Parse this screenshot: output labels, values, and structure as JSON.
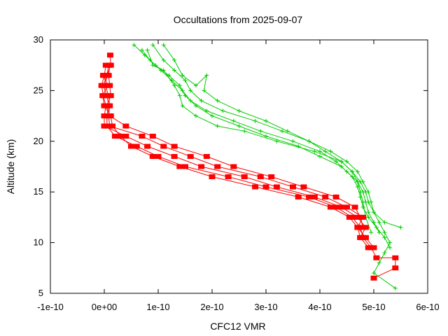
{
  "chart_data": {
    "type": "line",
    "title": "Occultations from 2025-09-07",
    "xlabel": "CFC12 VMR",
    "ylabel": "Altitude (km)",
    "xlim": [
      -1e-10,
      6e-10
    ],
    "ylim": [
      5,
      30
    ],
    "x_ticks": [
      -1e-10,
      0,
      1e-10,
      2e-10,
      3e-10,
      4e-10,
      5e-10,
      6e-10
    ],
    "x_tick_labels": [
      "-1e-10",
      "0e+00",
      "1e-10",
      "2e-10",
      "3e-10",
      "4e-10",
      "5e-10",
      "6e-10"
    ],
    "y_ticks": [
      5,
      10,
      15,
      20,
      25,
      30
    ],
    "y_tick_labels": [
      "5",
      "10",
      "15",
      "20",
      "25",
      "30"
    ],
    "grid": false,
    "legend": "none",
    "series": [
      {
        "color": "#ff0000",
        "marker": "square",
        "points": [
          [
            1.1e-11,
            28.5
          ],
          [
            1.2e-11,
            27.5
          ],
          [
            5e-12,
            26.5
          ],
          [
            -2e-12,
            25.5
          ],
          [
            5e-12,
            24.5
          ],
          [
            8e-12,
            23.5
          ],
          [
            5e-12,
            22.5
          ],
          [
            5e-12,
            21.5
          ],
          [
            2e-11,
            20.5
          ],
          [
            6e-11,
            19.5
          ],
          [
            1e-10,
            18.5
          ],
          [
            1.5e-10,
            17.5
          ],
          [
            2.3e-10,
            16.5
          ],
          [
            3e-10,
            15.5
          ],
          [
            3.8e-10,
            14.5
          ],
          [
            4.3e-10,
            13.5
          ],
          [
            4.6e-10,
            12.5
          ],
          [
            4.75e-10,
            11.5
          ],
          [
            4.8e-10,
            10.5
          ],
          [
            4.95e-10,
            9.5
          ],
          [
            5.05e-10,
            8.5
          ],
          [
            5.4e-10,
            8.5
          ],
          [
            5.4e-10,
            7.5
          ],
          [
            5e-10,
            6.5
          ]
        ]
      },
      {
        "color": "#ff0000",
        "marker": "square",
        "points": [
          [
            3e-12,
            27.5
          ],
          [
            0.0,
            26.5
          ],
          [
            -5e-12,
            25.5
          ],
          [
            -2e-12,
            24.5
          ],
          [
            3e-12,
            23.5
          ],
          [
            0.0,
            22.5
          ],
          [
            0.0,
            21.5
          ],
          [
            4e-11,
            20.5
          ],
          [
            8e-11,
            19.5
          ],
          [
            1.3e-10,
            18.5
          ],
          [
            1.8e-10,
            17.5
          ],
          [
            2.6e-10,
            16.5
          ],
          [
            3.2e-10,
            15.5
          ],
          [
            3.9e-10,
            14.5
          ],
          [
            4.4e-10,
            13.5
          ],
          [
            4.7e-10,
            12.5
          ],
          [
            4.85e-10,
            11.5
          ],
          [
            4.75e-10,
            10.5
          ],
          [
            4.9e-10,
            9.5
          ]
        ]
      },
      {
        "color": "#ff0000",
        "marker": "square",
        "points": [
          [
            8e-12,
            27.5
          ],
          [
            5e-12,
            26.5
          ],
          [
            2e-12,
            25.5
          ],
          [
            8e-12,
            24.5
          ],
          [
            1e-11,
            23.5
          ],
          [
            8e-12,
            22.5
          ],
          [
            1e-11,
            21.5
          ],
          [
            7e-11,
            20.5
          ],
          [
            1.1e-10,
            19.5
          ],
          [
            1.6e-10,
            18.5
          ],
          [
            2.1e-10,
            17.5
          ],
          [
            2.9e-10,
            16.5
          ],
          [
            3.5e-10,
            15.5
          ],
          [
            4.1e-10,
            14.5
          ],
          [
            4.5e-10,
            13.5
          ],
          [
            4.8e-10,
            12.5
          ],
          [
            4.7e-10,
            11.5
          ],
          [
            4.85e-10,
            10.5
          ],
          [
            5e-10,
            9.5
          ]
        ]
      },
      {
        "color": "#ff0000",
        "marker": "square",
        "points": [
          [
            -2e-12,
            26.5
          ],
          [
            6e-12,
            25.5
          ],
          [
            -3e-12,
            24.5
          ],
          [
            0.0,
            23.5
          ],
          [
            1.2e-11,
            22.5
          ],
          [
            1.5e-11,
            21.5
          ],
          [
            3e-11,
            20.5
          ],
          [
            5e-11,
            19.5
          ],
          [
            9e-11,
            18.5
          ],
          [
            1.4e-10,
            17.5
          ],
          [
            2e-10,
            16.5
          ],
          [
            2.8e-10,
            15.5
          ],
          [
            3.6e-10,
            14.5
          ],
          [
            4.2e-10,
            13.5
          ],
          [
            4.55e-10,
            12.5
          ],
          [
            4.7e-10,
            11.5
          ],
          [
            4.75e-10,
            10.5
          ]
        ]
      },
      {
        "color": "#ff0000",
        "marker": "square",
        "points": [
          [
            1e-11,
            27.5
          ],
          [
            8e-12,
            26.5
          ],
          [
            1e-11,
            25.5
          ],
          [
            1.2e-11,
            24.5
          ],
          [
            5e-12,
            23.5
          ],
          [
            1e-11,
            22.5
          ],
          [
            4e-11,
            21.5
          ],
          [
            9e-11,
            20.5
          ],
          [
            1.3e-10,
            19.5
          ],
          [
            1.9e-10,
            18.5
          ],
          [
            2.4e-10,
            17.5
          ],
          [
            3.1e-10,
            16.5
          ],
          [
            3.7e-10,
            15.5
          ],
          [
            4.3e-10,
            14.5
          ],
          [
            4.65e-10,
            13.5
          ],
          [
            4.75e-10,
            12.5
          ],
          [
            4.8e-10,
            11.5
          ]
        ]
      },
      {
        "color": "#00cc00",
        "marker": "plus",
        "points": [
          [
            9e-11,
            29.5
          ],
          [
            1.1e-10,
            28.0
          ],
          [
            1.3e-10,
            27.0
          ],
          [
            1.5e-10,
            26.0
          ],
          [
            1.6e-10,
            25.0
          ],
          [
            1.8e-10,
            24.0
          ],
          [
            2.2e-10,
            23.0
          ],
          [
            2.8e-10,
            22.0
          ],
          [
            3.3e-10,
            21.0
          ],
          [
            3.8e-10,
            20.0
          ],
          [
            4.2e-10,
            19.0
          ],
          [
            4.5e-10,
            18.0
          ],
          [
            4.7e-10,
            17.0
          ],
          [
            4.8e-10,
            16.0
          ],
          [
            4.9e-10,
            15.0
          ],
          [
            4.95e-10,
            14.0
          ],
          [
            5e-10,
            13.0
          ],
          [
            5.1e-10,
            12.0
          ],
          [
            5.2e-10,
            11.0
          ],
          [
            5.3e-10,
            10.0
          ],
          [
            5.2e-10,
            9.0
          ],
          [
            5.1e-10,
            8.0
          ],
          [
            5e-10,
            7.0
          ],
          [
            5.4e-10,
            5.5
          ]
        ]
      },
      {
        "color": "#00cc00",
        "marker": "plus",
        "points": [
          [
            5.5e-11,
            29.5
          ],
          [
            7.5e-11,
            28.5
          ],
          [
            9.5e-11,
            27.5
          ],
          [
            1.2e-10,
            26.5
          ],
          [
            1.4e-10,
            25.5
          ],
          [
            1.5e-10,
            24.5
          ],
          [
            1.7e-10,
            23.5
          ],
          [
            2e-10,
            22.5
          ],
          [
            2.5e-10,
            21.5
          ],
          [
            3e-10,
            20.5
          ],
          [
            3.6e-10,
            19.5
          ],
          [
            4e-10,
            18.5
          ],
          [
            4.4e-10,
            17.5
          ],
          [
            4.6e-10,
            16.5
          ],
          [
            4.7e-10,
            15.5
          ],
          [
            4.75e-10,
            14.5
          ],
          [
            4.8e-10,
            13.5
          ],
          [
            4.9e-10,
            12.5
          ],
          [
            5.05e-10,
            11.5
          ],
          [
            5.2e-10,
            10.5
          ],
          [
            5.3e-10,
            9.5
          ]
        ]
      },
      {
        "color": "#00cc00",
        "marker": "plus",
        "points": [
          [
            7e-11,
            29.0
          ],
          [
            8.5e-11,
            28.0
          ],
          [
            1.05e-10,
            27.0
          ],
          [
            1.25e-10,
            26.0
          ],
          [
            1.45e-10,
            25.0
          ],
          [
            1.6e-10,
            24.0
          ],
          [
            1.9e-10,
            23.0
          ],
          [
            2.4e-10,
            22.0
          ],
          [
            2.9e-10,
            21.0
          ],
          [
            3.5e-10,
            20.0
          ],
          [
            4e-10,
            19.0
          ],
          [
            4.3e-10,
            18.0
          ],
          [
            4.5e-10,
            17.0
          ],
          [
            4.7e-10,
            16.0
          ],
          [
            4.8e-10,
            15.0
          ],
          [
            4.85e-10,
            14.0
          ],
          [
            4.9e-10,
            13.0
          ],
          [
            5e-10,
            12.0
          ],
          [
            5.1e-10,
            11.0
          ]
        ]
      },
      {
        "color": "#00cc00",
        "marker": "plus",
        "points": [
          [
            1.1e-10,
            29.5
          ],
          [
            1.3e-10,
            28.0
          ],
          [
            1.45e-10,
            26.5
          ],
          [
            1.7e-10,
            25.5
          ],
          [
            1.9e-10,
            26.5
          ],
          [
            1.85e-10,
            25.0
          ],
          [
            2.1e-10,
            24.0
          ],
          [
            2.5e-10,
            23.0
          ],
          [
            3e-10,
            22.0
          ],
          [
            3.4e-10,
            21.0
          ],
          [
            3.8e-10,
            20.0
          ],
          [
            4.1e-10,
            19.0
          ],
          [
            4.4e-10,
            18.0
          ],
          [
            4.6e-10,
            17.0
          ],
          [
            4.75e-10,
            16.0
          ],
          [
            4.85e-10,
            15.0
          ],
          [
            4.9e-10,
            14.0
          ],
          [
            5e-10,
            13.0
          ],
          [
            5.2e-10,
            12.0
          ],
          [
            5.5e-10,
            11.5
          ]
        ]
      },
      {
        "color": "#00cc00",
        "marker": "plus",
        "points": [
          [
            8e-11,
            29.0
          ],
          [
            9e-11,
            27.5
          ],
          [
            1.1e-10,
            27.0
          ],
          [
            1.3e-10,
            25.5
          ],
          [
            1.4e-10,
            24.5
          ],
          [
            1.45e-10,
            23.5
          ],
          [
            1.7e-10,
            22.5
          ],
          [
            2.1e-10,
            21.5
          ],
          [
            2.6e-10,
            21.0
          ],
          [
            3.2e-10,
            20.0
          ],
          [
            3.9e-10,
            19.0
          ],
          [
            4.4e-10,
            18.0
          ],
          [
            4.6e-10,
            17.0
          ],
          [
            4.7e-10,
            16.0
          ],
          [
            4.75e-10,
            15.0
          ],
          [
            4.8e-10,
            14.0
          ],
          [
            4.85e-10,
            12.5
          ],
          [
            4.95e-10,
            11.0
          ]
        ]
      }
    ]
  }
}
